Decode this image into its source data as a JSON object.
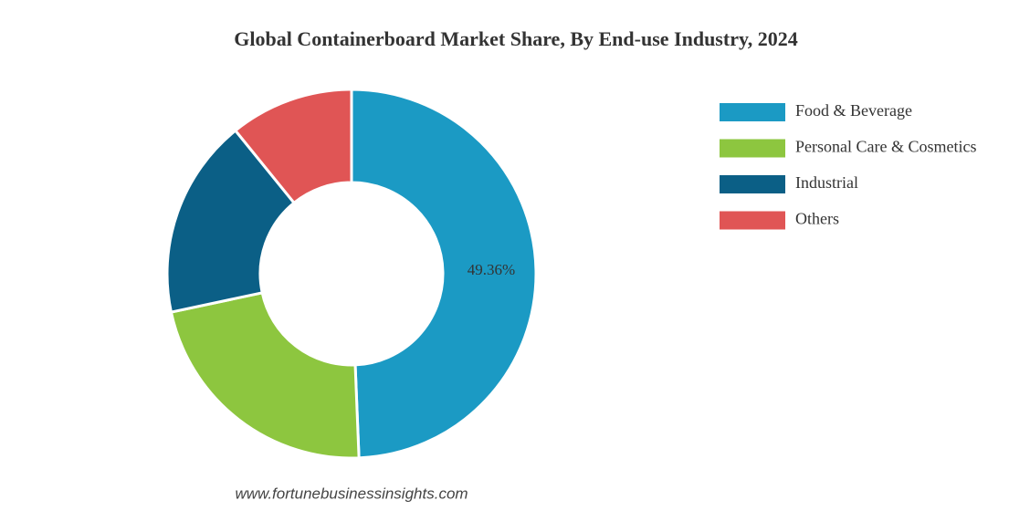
{
  "chart_data": {
    "type": "donut",
    "title": "Global Containerboard Market Share, By End-use Industry, 2024",
    "categories": [
      "Food & Beverage",
      "Personal Care & Cosmetics",
      "Industrial",
      "Others"
    ],
    "values": [
      49.36,
      22.3,
      17.5,
      10.84
    ],
    "value_labels": [
      "49.36%",
      null,
      null,
      null
    ],
    "colors": [
      "#1b9ac4",
      "#8dc63f",
      "#0b5f86",
      "#e05555"
    ],
    "source": "www.fortunebusinessinsights.com"
  }
}
